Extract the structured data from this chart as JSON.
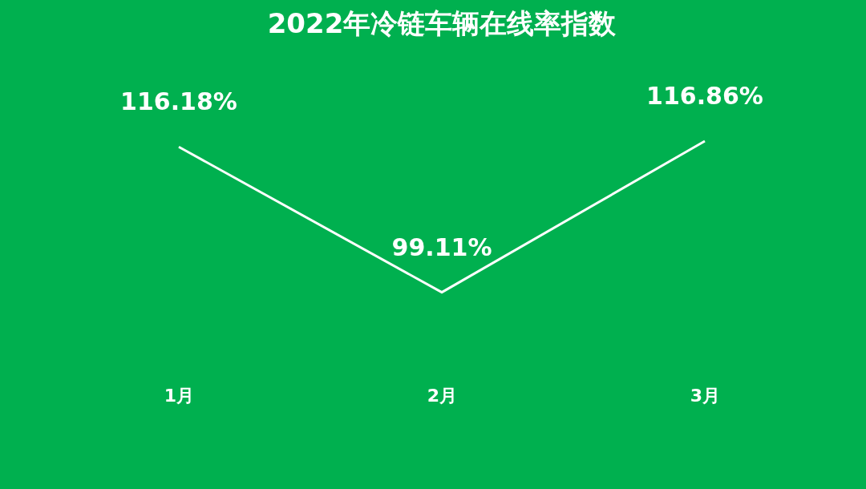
{
  "chart_data": {
    "type": "line",
    "title": "2022年冷链车辆在线率指数",
    "categories": [
      "1月",
      "2月",
      "3月"
    ],
    "series": [
      {
        "color": "#ffffff",
        "values": [
          116.18,
          99.11,
          116.86
        ],
        "value_labels": [
          "116.18%",
          "99.11%",
          "116.86%"
        ]
      }
    ]
  }
}
